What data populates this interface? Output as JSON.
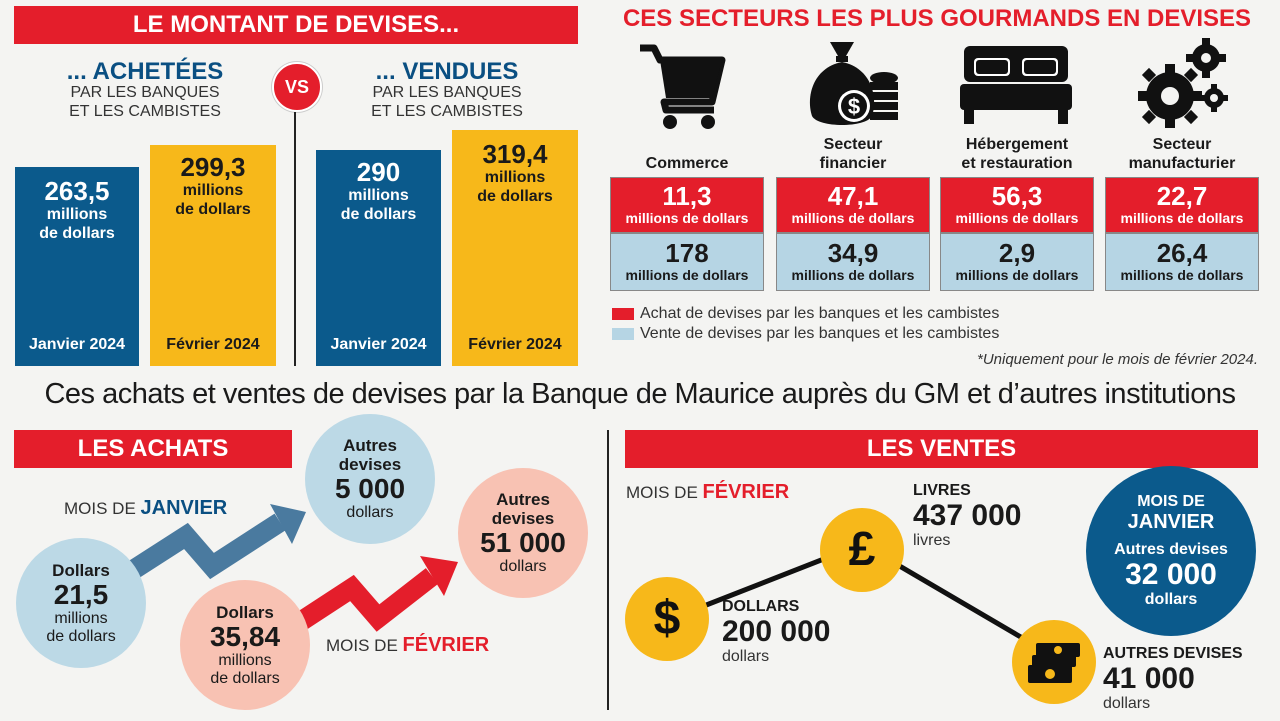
{
  "montant": {
    "title": "LE MONTANT DE DEVISES...",
    "vs": "VS",
    "achetees": {
      "title": "... ACHETÉES",
      "sub1": "PAR LES BANQUES",
      "sub2": "ET LES CAMBISTES",
      "jan": {
        "value": "263,5",
        "unit1": "millions",
        "unit2": "de dollars",
        "month": "Janvier 2024"
      },
      "feb": {
        "value": "299,3",
        "unit1": "millions",
        "unit2": "de dollars",
        "month": "Février 2024"
      }
    },
    "vendues": {
      "title": "... VENDUES",
      "sub1": "PAR LES BANQUES",
      "sub2": "ET LES CAMBISTES",
      "jan": {
        "value": "290",
        "unit1": "millions",
        "unit2": "de dollars",
        "month": "Janvier 2024"
      },
      "feb": {
        "value": "319,4",
        "unit1": "millions",
        "unit2": "de dollars",
        "month": "Février 2024"
      }
    }
  },
  "secteurs": {
    "title": "CES SECTEURS LES PLUS GOURMANDS EN DEVISES",
    "items": [
      {
        "label1": "",
        "label2": "Commerce",
        "icon": "shopping-cart-icon",
        "achat": "11,3",
        "vente": "178"
      },
      {
        "label1": "Secteur",
        "label2": "financier",
        "icon": "money-bag-icon",
        "achat": "47,1",
        "vente": "34,9"
      },
      {
        "label1": "Hébergement",
        "label2": "et restauration",
        "icon": "bed-icon",
        "achat": "56,3",
        "vente": "2,9"
      },
      {
        "label1": "Secteur",
        "label2": "manufacturier",
        "icon": "gears-icon",
        "achat": "22,7",
        "vente": "26,4"
      }
    ],
    "unit": "millions de dollars",
    "legend_achat": "Achat de devises par les banques et les cambistes",
    "legend_vente": "Vente de devises par les banques et les cambistes",
    "note": "*Uniquement pour le mois de février 2024."
  },
  "headline": "Ces achats et ventes de devises par la Banque de Maurice auprès du GM et d’autres institutions",
  "achats": {
    "title": "LES ACHATS",
    "mois_de": "MOIS DE",
    "janvier": "JANVIER",
    "fevrier": "FÉVRIER",
    "jan_dollars": {
      "t": "Dollars",
      "big": "21,5",
      "u1": "millions",
      "u2": "de dollars"
    },
    "jan_autres": {
      "t1": "Autres",
      "t2": "devises",
      "big": "5 000",
      "u": "dollars"
    },
    "feb_dollars": {
      "t": "Dollars",
      "big": "35,84",
      "u1": "millions",
      "u2": "de dollars"
    },
    "feb_autres": {
      "t1": "Autres",
      "t2": "devises",
      "big": "51 000",
      "u": "dollars"
    }
  },
  "ventes": {
    "title": "LES VENTES",
    "mois_de": "MOIS DE",
    "fevrier": "FÉVRIER",
    "dollars": {
      "t": "DOLLARS",
      "big": "200 000",
      "u": "dollars"
    },
    "livres": {
      "t": "LIVRES",
      "big": "437 000",
      "u": "livres"
    },
    "autres": {
      "t": "AUTRES DEVISES",
      "big": "41 000",
      "u": "dollars"
    },
    "janvier_box": {
      "t1": "MOIS DE",
      "t2": "JANVIER",
      "t3": "Autres devises",
      "big": "32 000",
      "u": "dollars"
    }
  },
  "colors": {
    "red": "#e41e2b",
    "blue": "#0b5a8c",
    "yellow": "#f7b81a",
    "lightblue": "#b6d5e4",
    "pink": "#f8c2b3"
  }
}
